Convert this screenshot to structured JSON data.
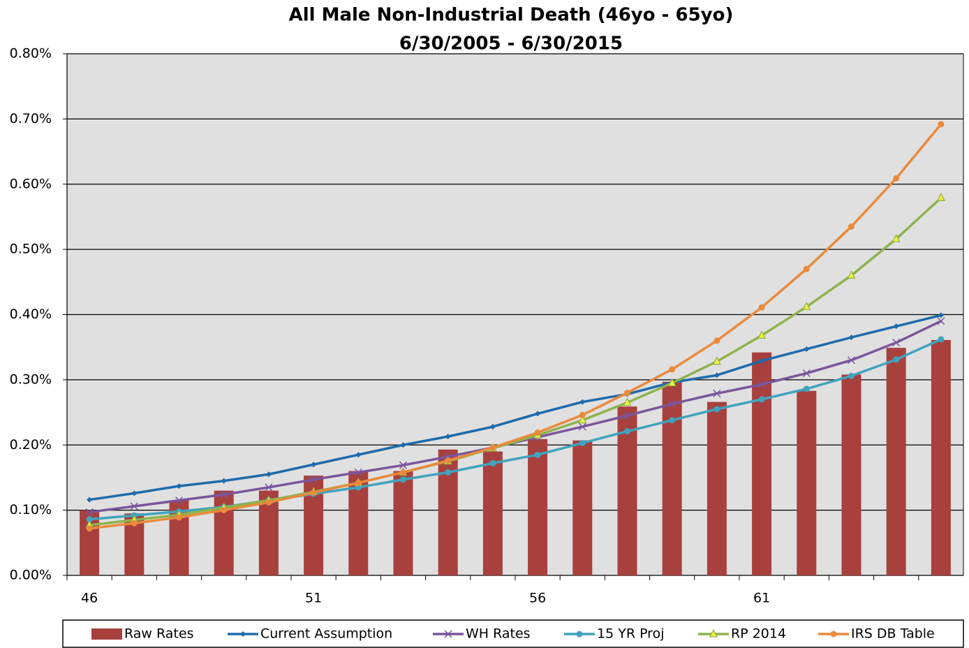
{
  "chart_data": {
    "type": "bar_line",
    "title": "All Male Non-Industrial  Death (46yo - 65yo)",
    "subtitle": "6/30/2005 - 6/30/2015",
    "categories": [
      "46",
      null,
      null,
      null,
      null,
      "51",
      null,
      null,
      null,
      null,
      "56",
      null,
      null,
      null,
      null,
      "61",
      null,
      null,
      null,
      null
    ],
    "ylim": [
      0,
      0.8
    ],
    "yticks": [
      {
        "value": 0,
        "label": "0.00%"
      },
      {
        "value": 0.1,
        "label": "0.10%"
      },
      {
        "value": 0.2,
        "label": "0.20%"
      },
      {
        "value": 0.3,
        "label": "0.30%"
      },
      {
        "value": 0.4,
        "label": "0.40%"
      },
      {
        "value": 0.5,
        "label": "0.50%"
      },
      {
        "value": 0.6,
        "label": "0.60%"
      },
      {
        "value": 0.7,
        "label": "0.70%"
      },
      {
        "value": 0.8,
        "label": "0.80%"
      }
    ],
    "grid": true,
    "legend": "bottom",
    "series": [
      {
        "name": "Raw Rates",
        "type": "bar",
        "color": "#a8403e",
        "values": [
          0.1,
          0.095,
          0.115,
          0.13,
          0.13,
          0.153,
          0.16,
          0.16,
          0.193,
          0.19,
          0.209,
          0.207,
          0.259,
          0.297,
          0.266,
          0.342,
          0.283,
          0.308,
          0.349,
          0.361
        ]
      },
      {
        "name": "Current Assumption",
        "type": "line",
        "marker": "diamond",
        "color": "#1f6bab",
        "values": [
          0.116,
          0.126,
          0.137,
          0.145,
          0.155,
          0.17,
          0.185,
          0.2,
          0.213,
          0.228,
          0.248,
          0.266,
          0.278,
          0.296,
          0.307,
          0.329,
          0.347,
          0.365,
          0.382,
          0.399
        ]
      },
      {
        "name": "WH Rates",
        "type": "line",
        "marker": "x",
        "color": "#7a559b",
        "values": [
          0.097,
          0.106,
          0.115,
          0.124,
          0.135,
          0.147,
          0.158,
          0.169,
          0.182,
          0.196,
          0.212,
          0.228,
          0.245,
          0.263,
          0.279,
          0.293,
          0.31,
          0.33,
          0.357,
          0.39
        ]
      },
      {
        "name": "15 YR Proj",
        "type": "line",
        "marker": "circle",
        "color": "#41a3bd",
        "values": [
          0.086,
          0.092,
          0.098,
          0.105,
          0.115,
          0.125,
          0.135,
          0.147,
          0.158,
          0.172,
          0.185,
          0.203,
          0.221,
          0.238,
          0.255,
          0.27,
          0.286,
          0.306,
          0.331,
          0.362
        ]
      },
      {
        "name": "RP 2014",
        "type": "line",
        "marker": "triangle",
        "color": "#8db34c",
        "values": [
          0.077,
          0.085,
          0.093,
          0.104,
          0.115,
          0.128,
          0.142,
          0.158,
          0.175,
          0.195,
          0.215,
          0.238,
          0.265,
          0.295,
          0.328,
          0.368,
          0.412,
          0.46,
          0.516,
          0.579
        ]
      },
      {
        "name": "IRS DB Table",
        "type": "line",
        "marker": "circle",
        "color": "#ea8a3c",
        "values": [
          0.072,
          0.08,
          0.089,
          0.1,
          0.112,
          0.127,
          0.142,
          0.158,
          0.176,
          0.196,
          0.219,
          0.246,
          0.28,
          0.316,
          0.36,
          0.411,
          0.47,
          0.535,
          0.609,
          0.692
        ]
      }
    ]
  }
}
